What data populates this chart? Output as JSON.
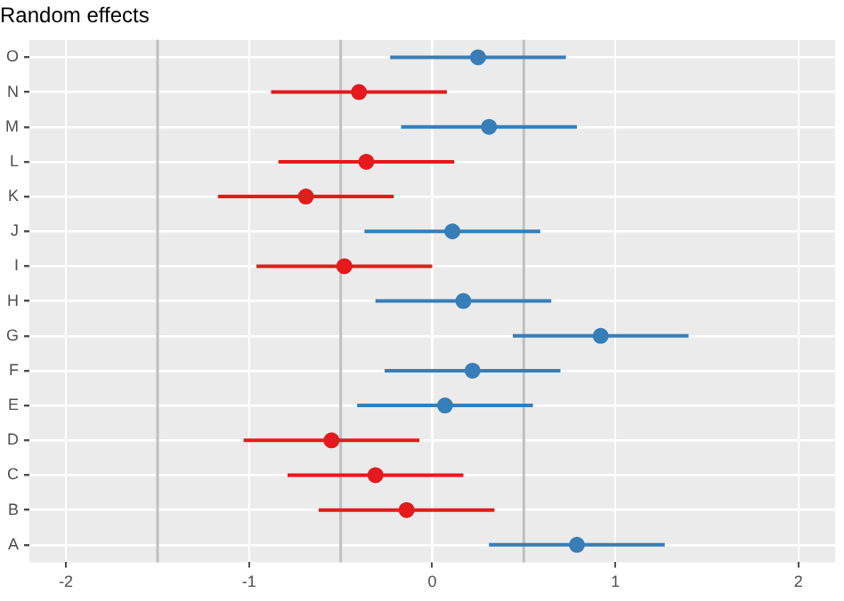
{
  "chart_data": {
    "type": "scatter",
    "orientation": "horizontal",
    "title": "Random effects",
    "categories": [
      "O",
      "N",
      "M",
      "L",
      "K",
      "J",
      "I",
      "H",
      "G",
      "F",
      "E",
      "D",
      "C",
      "B",
      "A"
    ],
    "series": [
      {
        "color": "#377eb8",
        "values": [
          0.25,
          null,
          0.31,
          null,
          null,
          0.11,
          null,
          0.17,
          0.92,
          0.22,
          0.07,
          null,
          null,
          null,
          0.79
        ],
        "errors": [
          0.48,
          null,
          0.48,
          null,
          null,
          0.48,
          null,
          0.48,
          0.48,
          0.48,
          0.48,
          null,
          null,
          null,
          0.48
        ]
      },
      {
        "color": "#e41a1c",
        "values": [
          null,
          -0.4,
          null,
          -0.36,
          -0.69,
          null,
          -0.48,
          null,
          null,
          null,
          null,
          -0.55,
          -0.31,
          -0.14,
          null
        ],
        "errors": [
          null,
          0.48,
          null,
          0.48,
          0.48,
          null,
          0.48,
          null,
          null,
          null,
          null,
          0.48,
          0.48,
          0.48,
          null
        ]
      }
    ],
    "xlim": [
      -2.2,
      2.2
    ],
    "xticks": [
      -2,
      -1,
      0,
      1,
      2
    ],
    "grid": true,
    "marker": "circle",
    "legend": false,
    "ref_lines": [
      {
        "axis": "x",
        "value": -1.5,
        "color": "#c0c0c0"
      },
      {
        "axis": "x",
        "value": -0.5,
        "color": "#c0c0c0"
      },
      {
        "axis": "x",
        "value": 0.5,
        "color": "#c0c0c0"
      },
      {
        "axis": "x",
        "value": 0,
        "color": "#ffffff"
      }
    ]
  }
}
